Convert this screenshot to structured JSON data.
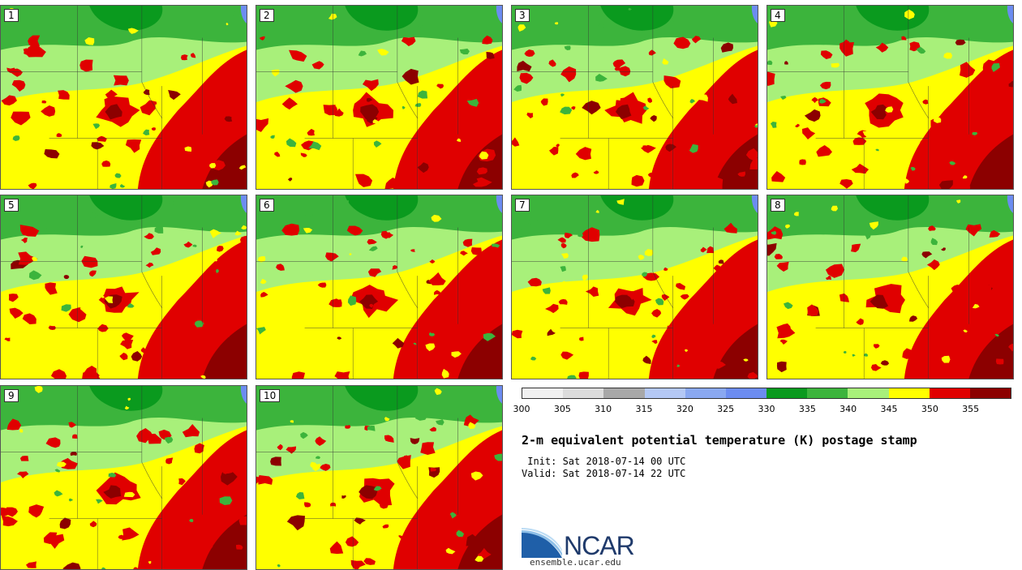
{
  "panels": [
    {
      "label": "1"
    },
    {
      "label": "2"
    },
    {
      "label": "3"
    },
    {
      "label": "4"
    },
    {
      "label": "5"
    },
    {
      "label": "6"
    },
    {
      "label": "7"
    },
    {
      "label": "8"
    },
    {
      "label": "9"
    },
    {
      "label": "10"
    }
  ],
  "colorbar": {
    "colors": [
      "#f0f0f0",
      "#dcdcdc",
      "#a8a8a8",
      "#b4c8f4",
      "#8aa8f0",
      "#6c8cf0",
      "#0a9a1e",
      "#3cb43c",
      "#a8f07a",
      "#ffff00",
      "#e00000",
      "#8c0000"
    ],
    "ticks": [
      "300",
      "305",
      "310",
      "315",
      "320",
      "325",
      "330",
      "335",
      "340",
      "345",
      "350",
      "355"
    ]
  },
  "title": "2-m equivalent potential temperature (K) postage stamp",
  "init": " Init: Sat 2018-07-14 00 UTC",
  "valid": "Valid: Sat 2018-07-14 22 UTC",
  "logo": {
    "text": "NCAR",
    "url": "ensemble.ucar.edu"
  }
}
